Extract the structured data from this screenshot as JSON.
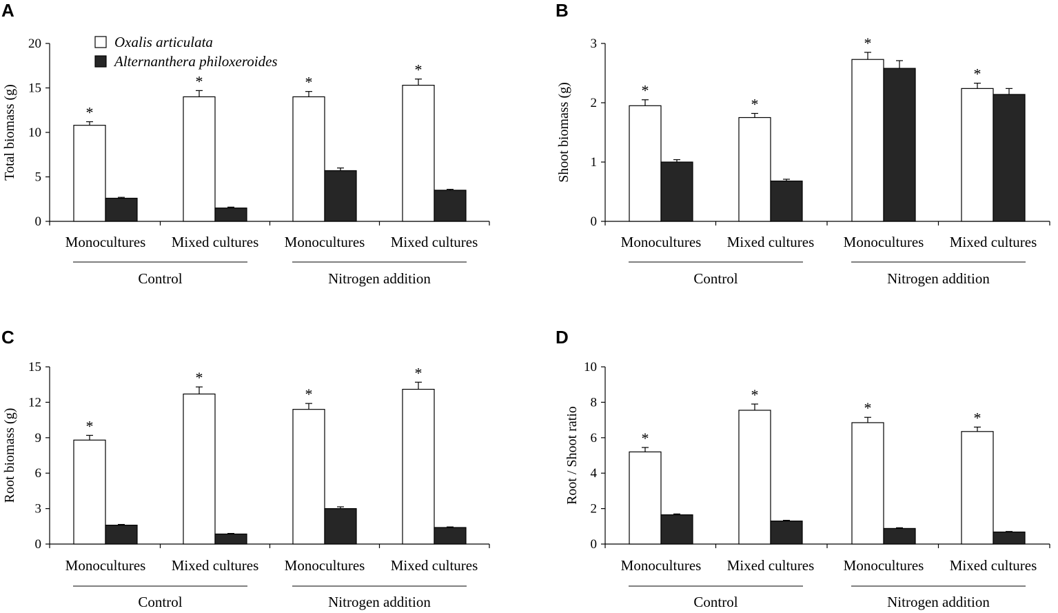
{
  "colors": {
    "species1": "#ffffff",
    "species2": "#262626",
    "stroke": "#000000"
  },
  "legend": {
    "items": [
      {
        "label": "Oxalis articulata",
        "color": "#ffffff"
      },
      {
        "label": "Alternanthera philoxeroides",
        "color": "#262626"
      }
    ]
  },
  "chart_data": [
    {
      "panel": "A",
      "type": "bar",
      "ylabel": "Total biomass (g)",
      "ylim": [
        0,
        20
      ],
      "yticks": [
        0,
        5,
        10,
        15,
        20
      ],
      "categories": [
        "Monocultures",
        "Mixed cultures",
        "Monocultures",
        "Mixed cultures"
      ],
      "groups": [
        {
          "label": "Control"
        },
        {
          "label": "Nitrogen addition"
        }
      ],
      "series": [
        {
          "name": "Oxalis articulata",
          "values": [
            10.8,
            14.0,
            14.0,
            15.3
          ],
          "errors": [
            0.4,
            0.7,
            0.6,
            0.7
          ]
        },
        {
          "name": "Alternanthera philoxeroides",
          "values": [
            2.6,
            1.5,
            5.7,
            3.5
          ],
          "errors": [
            0.1,
            0.1,
            0.3,
            0.1
          ]
        }
      ],
      "significance": [
        "*",
        "*",
        "*",
        "*"
      ]
    },
    {
      "panel": "B",
      "type": "bar",
      "ylabel": "Shoot biomass (g)",
      "ylim": [
        0,
        3
      ],
      "yticks": [
        0,
        1,
        2,
        3
      ],
      "categories": [
        "Monocultures",
        "Mixed cultures",
        "Monocultures",
        "Mixed cultures"
      ],
      "groups": [
        {
          "label": "Control"
        },
        {
          "label": "Nitrogen addition"
        }
      ],
      "series": [
        {
          "name": "Oxalis articulata",
          "values": [
            1.95,
            1.75,
            2.73,
            2.24
          ],
          "errors": [
            0.1,
            0.07,
            0.12,
            0.09
          ]
        },
        {
          "name": "Alternanthera philoxeroides",
          "values": [
            1.0,
            0.68,
            2.58,
            2.14
          ],
          "errors": [
            0.04,
            0.03,
            0.13,
            0.1
          ]
        }
      ],
      "significance": [
        "*",
        "*",
        "*",
        "*"
      ]
    },
    {
      "panel": "C",
      "type": "bar",
      "ylabel": "Root biomass (g)",
      "ylim": [
        0,
        15
      ],
      "yticks": [
        0,
        3,
        6,
        9,
        12,
        15
      ],
      "categories": [
        "Monocultures",
        "Mixed cultures",
        "Monocultures",
        "Mixed cultures"
      ],
      "groups": [
        {
          "label": "Control"
        },
        {
          "label": "Nitrogen addition"
        }
      ],
      "series": [
        {
          "name": "Oxalis articulata",
          "values": [
            8.8,
            12.7,
            11.4,
            13.1
          ],
          "errors": [
            0.4,
            0.6,
            0.5,
            0.6
          ]
        },
        {
          "name": "Alternanthera philoxeroides",
          "values": [
            1.6,
            0.85,
            3.0,
            1.4
          ],
          "errors": [
            0.06,
            0.05,
            0.15,
            0.05
          ]
        }
      ],
      "significance": [
        "*",
        "*",
        "*",
        "*"
      ]
    },
    {
      "panel": "D",
      "type": "bar",
      "ylabel": "Root / Shoot ratio",
      "ylim": [
        0,
        10
      ],
      "yticks": [
        0,
        2,
        4,
        6,
        8,
        10
      ],
      "categories": [
        "Monocultures",
        "Mixed cultures",
        "Monocultures",
        "Mixed cultures"
      ],
      "groups": [
        {
          "label": "Control"
        },
        {
          "label": "Nitrogen addition"
        }
      ],
      "series": [
        {
          "name": "Oxalis articulata",
          "values": [
            5.2,
            7.55,
            6.85,
            6.35
          ],
          "errors": [
            0.25,
            0.35,
            0.3,
            0.25
          ]
        },
        {
          "name": "Alternanthera philoxeroides",
          "values": [
            1.65,
            1.3,
            0.88,
            0.68
          ],
          "errors": [
            0.05,
            0.04,
            0.04,
            0.03
          ]
        }
      ],
      "significance": [
        "*",
        "*",
        "*",
        "*"
      ]
    }
  ]
}
